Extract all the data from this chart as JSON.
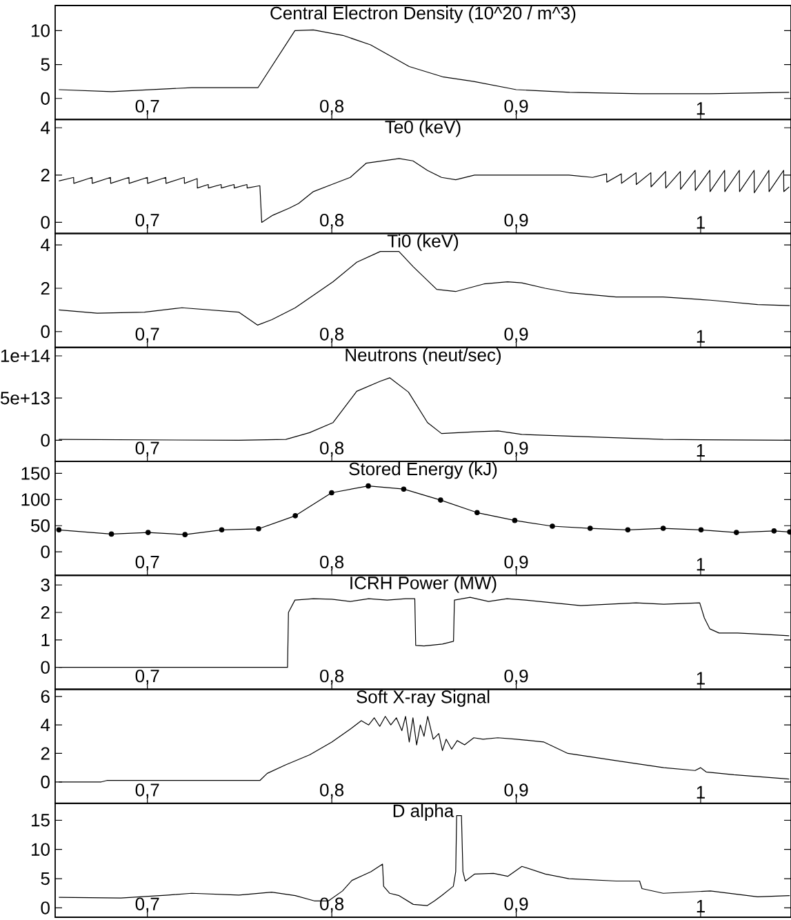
{
  "chart_data": [
    {
      "type": "line",
      "title": "Central Electron Density (10^20 / m^3)",
      "color": "#000000",
      "xlim": [
        0.65,
        1.049
      ],
      "xticks": [
        {
          "value": 0.7,
          "label": "0,7"
        },
        {
          "value": 0.8,
          "label": "0,8"
        },
        {
          "value": 0.9,
          "label": "0,9"
        },
        1
      ],
      "ylim": [
        -3.1,
        13.7
      ],
      "yticks": [
        0,
        5,
        10
      ],
      "x": [
        0.652,
        0.6805,
        0.724,
        0.76,
        0.78,
        0.79,
        0.806,
        0.821,
        0.842,
        0.86,
        0.877,
        0.9,
        0.929,
        0.967,
        1.005,
        1.048
      ],
      "values": [
        1.3,
        1.0,
        1.6,
        1.6,
        10.0,
        10.1,
        9.3,
        7.9,
        4.7,
        3.2,
        2.5,
        1.3,
        0.9,
        0.7,
        0.7,
        0.9
      ]
    },
    {
      "type": "line",
      "title": "Te0 (keV)",
      "color": "#000000",
      "xlim": [
        0.65,
        1.049
      ],
      "xticks": [
        {
          "value": 0.7,
          "label": "0,7"
        },
        {
          "value": 0.8,
          "label": "0,8"
        },
        {
          "value": 0.9,
          "label": "0,9"
        },
        1
      ],
      "ylim": [
        -0.47,
        4.35
      ],
      "yticks": [
        0,
        2,
        4
      ],
      "x": [
        0.652,
        0.66,
        0.6601,
        0.67,
        0.6701,
        0.68,
        0.6801,
        0.69,
        0.6901,
        0.7,
        0.7001,
        0.71,
        0.7101,
        0.72,
        0.7201,
        0.727,
        0.7271,
        0.733,
        0.7331,
        0.74,
        0.7401,
        0.747,
        0.7471,
        0.754,
        0.7541,
        0.761,
        0.762,
        0.768,
        0.777,
        0.782,
        0.79,
        0.8,
        0.81,
        0.8186,
        0.8365,
        0.844,
        0.8518,
        0.8595,
        0.8672,
        0.8774,
        0.8928,
        0.9286,
        0.9414,
        0.949,
        0.9491,
        0.957,
        0.9571,
        0.965,
        0.9651,
        0.973,
        0.9731,
        0.981,
        0.9811,
        0.989,
        0.9891,
        0.997,
        0.9971,
        1.005,
        1.0051,
        1.013,
        1.0131,
        1.021,
        1.0211,
        1.029,
        1.0291,
        1.037,
        1.0371,
        1.045,
        1.0451,
        1.048
      ],
      "values": [
        1.75,
        1.9,
        1.65,
        1.9,
        1.65,
        1.9,
        1.65,
        1.9,
        1.65,
        1.9,
        1.65,
        1.9,
        1.65,
        1.9,
        1.65,
        1.85,
        1.45,
        1.6,
        1.45,
        1.6,
        1.45,
        1.6,
        1.45,
        1.6,
        1.45,
        1.55,
        0.0,
        0.3,
        0.6,
        0.8,
        1.3,
        1.6,
        1.9,
        2.5,
        2.7,
        2.6,
        2.2,
        1.9,
        1.8,
        2.0,
        2.0,
        2.0,
        1.9,
        2.05,
        1.7,
        2.05,
        1.65,
        2.1,
        1.6,
        2.1,
        1.5,
        2.15,
        1.45,
        2.15,
        1.4,
        2.2,
        1.35,
        2.2,
        1.3,
        2.2,
        1.3,
        2.2,
        1.3,
        2.2,
        1.25,
        2.2,
        1.3,
        2.2,
        1.3,
        1.5
      ]
    },
    {
      "type": "line",
      "title": "Ti0 (keV)",
      "color": "#000000",
      "xlim": [
        0.65,
        1.049
      ],
      "xticks": [
        {
          "value": 0.7,
          "label": "0,7"
        },
        {
          "value": 0.8,
          "label": "0,8"
        },
        {
          "value": 0.9,
          "label": "0,9"
        },
        1
      ],
      "ylim": [
        -0.73,
        4.53
      ],
      "yticks": [
        0,
        2,
        4
      ],
      "x": [
        0.652,
        0.6728,
        0.6984,
        0.7188,
        0.7495,
        0.7598,
        0.7675,
        0.7802,
        0.8007,
        0.8135,
        0.8263,
        0.8364,
        0.8441,
        0.8569,
        0.8671,
        0.8825,
        0.8953,
        0.903,
        0.9157,
        0.9285,
        0.9541,
        0.9797,
        1.0053,
        1.0309,
        1.0483
      ],
      "values": [
        1.0,
        0.85,
        0.9,
        1.1,
        0.9,
        0.3,
        0.55,
        1.1,
        2.3,
        3.2,
        3.7,
        3.7,
        3.0,
        1.95,
        1.85,
        2.2,
        2.3,
        2.25,
        2.0,
        1.8,
        1.6,
        1.6,
        1.45,
        1.25,
        1.2
      ]
    },
    {
      "type": "line",
      "title": "Neutrons (neut/sec)",
      "color": "#000000",
      "xlim": [
        0.65,
        1.049
      ],
      "xticks": [
        {
          "value": 0.7,
          "label": "0,7"
        },
        {
          "value": 0.8,
          "label": "0,8"
        },
        {
          "value": 0.9,
          "label": "0,9"
        },
        1
      ],
      "ylim": [
        -25000000000000.0,
        110000000000000.0
      ],
      "yticks": [
        0,
        {
          "value": 50000000000000.0,
          "label": "5e+13"
        },
        {
          "value": 100000000000000.0,
          "label": "1e+14"
        }
      ],
      "x": [
        0.652,
        0.7495,
        0.7751,
        0.7879,
        0.8007,
        0.8135,
        0.8263,
        0.8314,
        0.8416,
        0.8519,
        0.8595,
        0.8774,
        0.8902,
        0.903,
        0.9285,
        0.9797,
        1.0483
      ],
      "values": [
        1000000000000.0,
        0,
        1000000000000.0,
        9000000000000.0,
        21000000000000.0,
        58000000000000.0,
        70000000000000.0,
        74000000000000.0,
        57000000000000.0,
        21000000000000.0,
        8000000000000.0,
        10000000000000.0,
        11000000000000.0,
        7000000000000.0,
        5000000000000.0,
        1000000000000.0,
        0
      ]
    },
    {
      "type": "line",
      "title": "Stored Energy (kJ)",
      "color": "#000000",
      "marker": "circle",
      "xlim": [
        0.65,
        1.049
      ],
      "xticks": [
        {
          "value": 0.7,
          "label": "0,7"
        },
        {
          "value": 0.8,
          "label": "0,8"
        },
        {
          "value": 0.9,
          "label": "0,9"
        },
        1
      ],
      "ylim": [
        -45,
        173
      ],
      "yticks": [
        0,
        50,
        100,
        150
      ],
      "x": [
        0.652,
        0.6805,
        0.7004,
        0.7204,
        0.7403,
        0.7603,
        0.7802,
        0.7999,
        0.8198,
        0.839,
        0.859,
        0.8788,
        0.8992,
        0.9196,
        0.9401,
        0.9605,
        0.9797,
        1.0002,
        1.0194,
        1.0398,
        1.0483
      ],
      "values": [
        42,
        34,
        37,
        33,
        42,
        44,
        69,
        113,
        126,
        120,
        99,
        75,
        60,
        49,
        45,
        42,
        45,
        42,
        37,
        40,
        38
      ]
    },
    {
      "type": "line",
      "title": "ICRH Power (MW)",
      "color": "#000000",
      "xlim": [
        0.65,
        1.049
      ],
      "xticks": [
        {
          "value": 0.7,
          "label": "0,7"
        },
        {
          "value": 0.8,
          "label": "0,8"
        },
        {
          "value": 0.9,
          "label": "0,9"
        },
        1
      ],
      "ylim": [
        -0.8,
        3.35
      ],
      "yticks": [
        0,
        1,
        2,
        3
      ],
      "x": [
        0.652,
        0.776,
        0.7765,
        0.78,
        0.79,
        0.8,
        0.81,
        0.82,
        0.83,
        0.84,
        0.845,
        0.8455,
        0.85,
        0.86,
        0.866,
        0.8665,
        0.875,
        0.885,
        0.895,
        0.905,
        0.92,
        0.935,
        0.95,
        0.965,
        0.98,
        0.9995,
        1.002,
        1.005,
        1.01,
        1.02,
        1.035,
        1.048
      ],
      "values": [
        0,
        0,
        2.0,
        2.45,
        2.5,
        2.48,
        2.4,
        2.5,
        2.45,
        2.5,
        2.5,
        0.8,
        0.78,
        0.85,
        0.95,
        2.45,
        2.55,
        2.4,
        2.5,
        2.45,
        2.35,
        2.25,
        2.3,
        2.35,
        2.3,
        2.35,
        1.8,
        1.4,
        1.25,
        1.25,
        1.2,
        1.15
      ]
    },
    {
      "type": "line",
      "title": "Soft X-ray Signal",
      "color": "#000000",
      "xlim": [
        0.65,
        1.049
      ],
      "xticks": [
        {
          "value": 0.7,
          "label": "0,7"
        },
        {
          "value": 0.8,
          "label": "0,8"
        },
        {
          "value": 0.9,
          "label": "0,9"
        },
        1
      ],
      "ylim": [
        -1.5,
        6.5
      ],
      "yticks": [
        0,
        2,
        4,
        6
      ],
      "x": [
        0.652,
        0.675,
        0.678,
        0.761,
        0.765,
        0.775,
        0.788,
        0.8,
        0.811,
        0.816,
        0.82,
        0.823,
        0.826,
        0.829,
        0.832,
        0.835,
        0.838,
        0.84,
        0.842,
        0.844,
        0.846,
        0.848,
        0.85,
        0.852,
        0.855,
        0.858,
        0.86,
        0.862,
        0.865,
        0.868,
        0.872,
        0.877,
        0.882,
        0.89,
        0.9,
        0.915,
        0.928,
        0.954,
        0.98,
        0.997,
        1.0,
        1.003,
        1.018,
        1.048
      ],
      "values": [
        0,
        0,
        0.1,
        0.1,
        0.6,
        1.2,
        1.9,
        2.8,
        3.8,
        4.3,
        4.0,
        4.5,
        3.9,
        4.6,
        4.0,
        4.5,
        3.6,
        4.6,
        2.8,
        4.5,
        2.6,
        4.0,
        3.2,
        4.6,
        3.0,
        3.4,
        2.2,
        3.0,
        2.3,
        2.9,
        2.6,
        3.1,
        3.0,
        3.1,
        3.0,
        2.8,
        2.0,
        1.5,
        1.0,
        0.8,
        1.0,
        0.7,
        0.5,
        0.2
      ]
    },
    {
      "type": "line",
      "title": "D alpha",
      "color": "#000000",
      "xlim": [
        0.65,
        1.049
      ],
      "xticks": [
        {
          "value": 0.7,
          "label": "0,7"
        },
        {
          "value": 0.8,
          "label": "0,8"
        },
        {
          "value": 0.9,
          "label": "0,9"
        },
        1
      ],
      "ylim": [
        -1.6,
        17.9
      ],
      "yticks": [
        0,
        5,
        10,
        15
      ],
      "x": [
        0.652,
        0.6856,
        0.7112,
        0.724,
        0.7496,
        0.7674,
        0.7802,
        0.7905,
        0.7982,
        0.8058,
        0.8109,
        0.8212,
        0.8275,
        0.8281,
        0.8314,
        0.8365,
        0.8442,
        0.8518,
        0.8557,
        0.8595,
        0.8659,
        0.8672,
        0.8677,
        0.8703,
        0.8711,
        0.8724,
        0.8775,
        0.8877,
        0.8954,
        0.9031,
        0.9158,
        0.9286,
        0.9542,
        0.9669,
        0.9682,
        0.9797,
        1.0053,
        1.0309,
        1.0483
      ],
      "values": [
        1.8,
        1.7,
        2.2,
        2.5,
        2.2,
        2.7,
        2.1,
        1.2,
        1.2,
        2.9,
        4.7,
        6.2,
        7.5,
        3.7,
        2.5,
        2.1,
        0.6,
        0.4,
        1.2,
        2.1,
        3.7,
        6.2,
        15.8,
        15.8,
        6.2,
        4.6,
        5.8,
        5.9,
        5.4,
        7.1,
        5.8,
        5.0,
        4.6,
        4.6,
        3.3,
        2.5,
        2.9,
        1.9,
        2.1
      ]
    }
  ]
}
